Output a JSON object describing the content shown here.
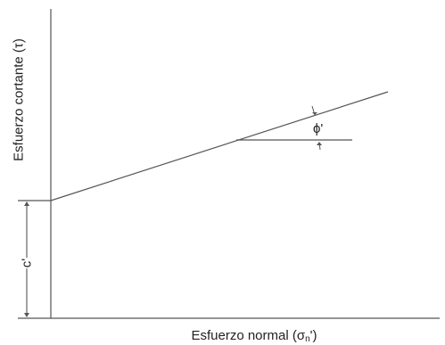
{
  "labels": {
    "y_axis": "Esfuerzo cortante (τ)",
    "x_axis_prefix": "Esfuerzo normal (σ",
    "x_axis_subscript": "n",
    "x_axis_suffix": "')",
    "cohesion": "c'",
    "friction_angle": "ϕ'"
  },
  "colors": {
    "line": "#555555",
    "text": "#222222"
  }
}
